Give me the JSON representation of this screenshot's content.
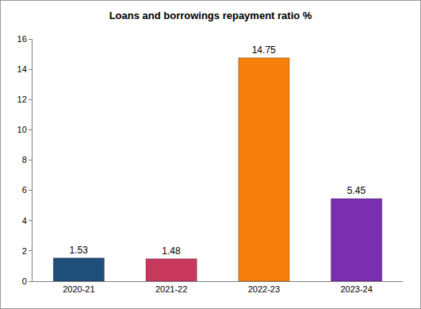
{
  "chart_data": {
    "type": "bar",
    "title": "Loans and borrowings repayment ratio %",
    "categories": [
      "2020-21",
      "2021-22",
      "2022-23",
      "2023-24"
    ],
    "values": [
      1.53,
      1.48,
      14.75,
      5.45
    ],
    "colors": [
      "#1f4e79",
      "#c8385c",
      "#f57f0a",
      "#7a2fb0"
    ],
    "ylim": [
      0,
      16
    ],
    "yticks": [
      0,
      2,
      4,
      6,
      8,
      10,
      12,
      14,
      16
    ],
    "grid": false,
    "data_labels": true
  }
}
